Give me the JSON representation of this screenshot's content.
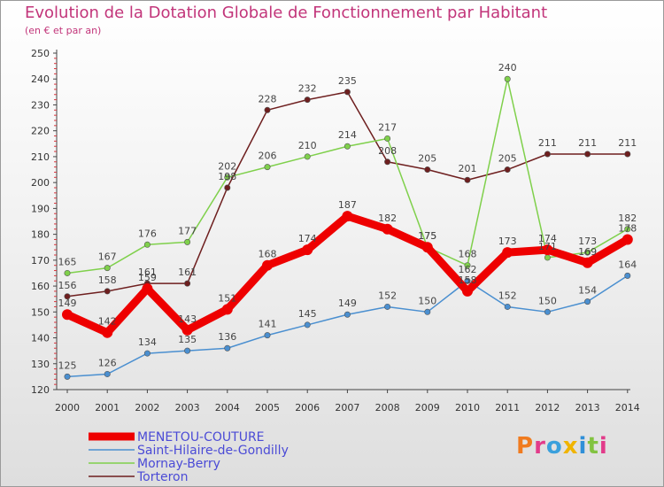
{
  "header": {
    "title": "Evolution de la Dotation Globale de Fonctionnement par Habitant",
    "subtitle": "(en € et par an)"
  },
  "logo": {
    "text": "Proxiti"
  },
  "chart_data": {
    "type": "line",
    "title": "Evolution de la Dotation Globale de Fonctionnement par Habitant",
    "subtitle": "(en € et par an)",
    "xlabel": "",
    "ylabel": "",
    "x": [
      "2000",
      "2001",
      "2002",
      "2003",
      "2004",
      "2005",
      "2006",
      "2007",
      "2008",
      "2009",
      "2010",
      "2011",
      "2012",
      "2013",
      "2014"
    ],
    "ylim": [
      120,
      250
    ],
    "yticks": [
      "120",
      "130",
      "140",
      "150",
      "160",
      "170",
      "180",
      "190",
      "200",
      "210",
      "220",
      "230",
      "240",
      "250"
    ],
    "grid": false,
    "legend_position": "bottom-left",
    "series": [
      {
        "name": "Torteron",
        "color": "#6e1f1f",
        "values": [
          156,
          158,
          161,
          161,
          198,
          228,
          232,
          235,
          208,
          205,
          201,
          205,
          211,
          211,
          211
        ],
        "labels": [
          "156",
          "158",
          "161",
          "161",
          "198",
          "228",
          "232",
          "235",
          "208",
          "205",
          "201",
          "205",
          "211",
          "211",
          "211"
        ]
      },
      {
        "name": "Mornay-Berry",
        "color": "#7fd04b",
        "values": [
          165,
          167,
          176,
          177,
          202,
          206,
          210,
          214,
          217,
          175,
          168,
          240,
          171,
          173,
          182
        ],
        "labels": [
          "165",
          "167",
          "176",
          "177",
          "202",
          "206",
          "210",
          "214",
          "217",
          "175",
          "168",
          "240",
          "171",
          "173",
          "182"
        ]
      },
      {
        "name": "Saint-Hilaire-de-Gondilly",
        "color": "#4a8fd0",
        "values": [
          125,
          126,
          134,
          135,
          136,
          141,
          145,
          149,
          152,
          150,
          162,
          152,
          150,
          154,
          164
        ],
        "labels": [
          "125",
          "126",
          "134",
          "135",
          "136",
          "141",
          "145",
          "149",
          "152",
          "150",
          "162",
          "152",
          "150",
          "154",
          "164"
        ]
      },
      {
        "name": "MENETOU-COUTURE",
        "color": "#ee0000",
        "values": [
          149,
          142,
          159,
          143,
          151,
          168,
          174,
          187,
          182,
          175,
          158,
          173,
          174,
          169,
          178
        ],
        "labels": [
          "149",
          "142",
          "159",
          "143",
          "151",
          "168",
          "174",
          "187",
          "182",
          "175",
          "158",
          "173",
          "174",
          "169",
          "178"
        ]
      }
    ],
    "legend": [
      "MENETOU-COUTURE",
      "Saint-Hilaire-de-Gondilly",
      "Mornay-Berry",
      "Torteron"
    ]
  }
}
